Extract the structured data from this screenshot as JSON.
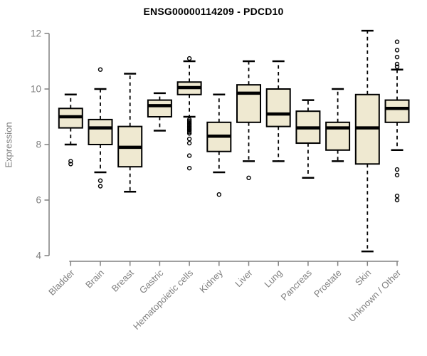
{
  "chart_data": {
    "type": "boxplot",
    "title": "ENSG00000114209 - PDCD10",
    "ylabel": "Expression",
    "xlabel": "",
    "ylim": [
      4,
      12
    ],
    "yticks": [
      4,
      6,
      8,
      10,
      12
    ],
    "grid": false,
    "legend": "none",
    "categories": [
      "Bladder",
      "Brain",
      "Breast",
      "Gastric",
      "Hematopoietic cells",
      "Kidney",
      "Liver",
      "Lung",
      "Pancreas",
      "Prostate",
      "Skin",
      "Unknown / Other"
    ],
    "series": [
      {
        "name": "Bladder",
        "whisker_low": 8.0,
        "q1": 8.6,
        "median": 9.0,
        "q3": 9.3,
        "whisker_high": 9.8,
        "outliers": [
          7.4,
          7.3
        ]
      },
      {
        "name": "Brain",
        "whisker_low": 7.0,
        "q1": 8.0,
        "median": 8.6,
        "q3": 8.9,
        "whisker_high": 10.0,
        "outliers": [
          10.7,
          6.7,
          6.5
        ]
      },
      {
        "name": "Breast",
        "whisker_low": 6.3,
        "q1": 7.2,
        "median": 7.9,
        "q3": 8.65,
        "whisker_high": 10.55,
        "outliers": []
      },
      {
        "name": "Gastric",
        "whisker_low": 8.5,
        "q1": 9.0,
        "median": 9.4,
        "q3": 9.6,
        "whisker_high": 9.85,
        "outliers": []
      },
      {
        "name": "Hematopoietic cells",
        "whisker_low": 9.0,
        "q1": 9.8,
        "median": 10.05,
        "q3": 10.25,
        "whisker_high": 11.0,
        "outliers": [
          11.1,
          8.9,
          8.85,
          8.8,
          8.75,
          8.7,
          8.65,
          8.6,
          8.55,
          8.5,
          8.45,
          8.4,
          8.2,
          8.05,
          7.6,
          7.15
        ]
      },
      {
        "name": "Kidney",
        "whisker_low": 7.0,
        "q1": 7.75,
        "median": 8.3,
        "q3": 8.8,
        "whisker_high": 9.8,
        "outliers": [
          6.2
        ]
      },
      {
        "name": "Liver",
        "whisker_low": 7.4,
        "q1": 8.8,
        "median": 9.85,
        "q3": 10.15,
        "whisker_high": 11.0,
        "outliers": [
          6.8
        ]
      },
      {
        "name": "Lung",
        "whisker_low": 7.4,
        "q1": 8.65,
        "median": 9.1,
        "q3": 10.0,
        "whisker_high": 11.0,
        "outliers": []
      },
      {
        "name": "Pancreas",
        "whisker_low": 6.8,
        "q1": 8.05,
        "median": 8.6,
        "q3": 9.2,
        "whisker_high": 9.6,
        "outliers": []
      },
      {
        "name": "Prostate",
        "whisker_low": 7.4,
        "q1": 7.8,
        "median": 8.6,
        "q3": 8.8,
        "whisker_high": 10.0,
        "outliers": []
      },
      {
        "name": "Skin",
        "whisker_low": 4.15,
        "q1": 7.3,
        "median": 8.6,
        "q3": 9.8,
        "whisker_high": 12.1,
        "outliers": []
      },
      {
        "name": "Unknown / Other",
        "whisker_low": 7.8,
        "q1": 8.8,
        "median": 9.3,
        "q3": 9.6,
        "whisker_high": 10.7,
        "outliers": [
          11.7,
          11.4,
          11.15,
          10.9,
          10.8,
          7.1,
          6.9,
          6.15,
          6.0
        ]
      }
    ],
    "colors": {
      "box_fill": "#EFE9D1",
      "box_border": "#000000",
      "median": "#000000",
      "whisker": "#000000",
      "axis": "#808080",
      "title": "#000000",
      "background": "#FFFFFF"
    }
  }
}
